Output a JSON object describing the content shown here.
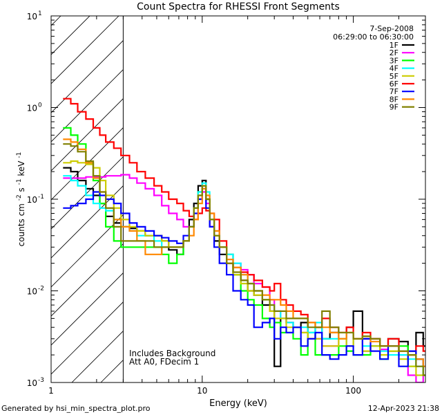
{
  "chart_data": {
    "type": "line",
    "title": "Count Spectra for RHESSI Front Segments",
    "xlabel": "Energy (keV)",
    "ylabel": "counts cm",
    "ylabel_sup1": "-2",
    "ylabel_s": " s",
    "ylabel_sup2": "-1",
    "ylabel_kev": " keV",
    "ylabel_sup3": "-1",
    "xscale": "log",
    "yscale": "log",
    "xlim": [
      1,
      300
    ],
    "ylim": [
      0.001,
      10
    ],
    "x_ticks": [
      {
        "value": 1,
        "label": "1"
      },
      {
        "value": 10,
        "label": "10"
      },
      {
        "value": 100,
        "label": "100"
      }
    ],
    "y_ticks": [
      {
        "value": 10,
        "base": "10",
        "exp": "1"
      },
      {
        "value": 1,
        "base": "10",
        "exp": "0"
      },
      {
        "value": 0.1,
        "base": "10",
        "exp": "-1"
      },
      {
        "value": 0.01,
        "base": "10",
        "exp": "-2"
      },
      {
        "value": 0.001,
        "base": "10",
        "exp": "-3"
      }
    ],
    "date": "7-Sep-2008",
    "time_range": "06:29:00 to 06:30:00",
    "attenuator_cutoff_kev": 3,
    "annotations": [
      "Includes Background",
      "Att A0, FDecim 1"
    ],
    "series": [
      {
        "name": "1F",
        "color": "#000000",
        "x": [
          1.2,
          1.35,
          1.5,
          1.7,
          1.9,
          2.1,
          2.3,
          2.6,
          2.9,
          3.3,
          3.7,
          4.2,
          4.8,
          5.4,
          6.0,
          6.8,
          7.5,
          8.2,
          8.8,
          9.4,
          10.0,
          10.6,
          11.2,
          12.0,
          13.0,
          14.5,
          16.0,
          18.0,
          20.0,
          22.0,
          25.0,
          28.0,
          30.0,
          33.0,
          36.0,
          40.0,
          45.0,
          50.0,
          56.0,
          62.0,
          70.0,
          80.0,
          90.0,
          100.0,
          115.0,
          130.0,
          150.0,
          170.0,
          200.0,
          230.0,
          260.0,
          290.0
        ],
        "values": [
          0.22,
          0.2,
          0.16,
          0.13,
          0.11,
          0.09,
          0.065,
          0.055,
          0.05,
          0.048,
          0.045,
          0.04,
          0.04,
          0.035,
          0.028,
          0.025,
          0.035,
          0.06,
          0.09,
          0.14,
          0.16,
          0.1,
          0.05,
          0.035,
          0.025,
          0.02,
          0.015,
          0.013,
          0.01,
          0.009,
          0.007,
          0.006,
          0.0015,
          0.005,
          0.0045,
          0.004,
          0.0045,
          0.003,
          0.004,
          0.003,
          0.0035,
          0.003,
          0.004,
          0.006,
          0.003,
          0.003,
          0.0025,
          0.003,
          0.0028,
          0.0022,
          0.0035,
          0.0025
        ]
      },
      {
        "name": "2F",
        "color": "#ff00ff",
        "x": [
          1.2,
          1.35,
          1.5,
          1.7,
          1.9,
          2.1,
          2.3,
          2.6,
          2.9,
          3.3,
          3.7,
          4.2,
          4.8,
          5.4,
          6.0,
          6.8,
          7.5,
          8.2,
          8.8,
          9.4,
          10.0,
          10.6,
          11.2,
          12.0,
          13.0,
          14.5,
          16.0,
          18.0,
          20.0,
          22.0,
          25.0,
          28.0,
          30.0,
          33.0,
          36.0,
          40.0,
          45.0,
          50.0,
          56.0,
          62.0,
          70.0,
          80.0,
          90.0,
          100.0,
          115.0,
          130.0,
          150.0,
          170.0,
          200.0,
          230.0,
          260.0,
          290.0
        ],
        "values": [
          0.17,
          0.17,
          0.17,
          0.175,
          0.175,
          0.175,
          0.18,
          0.18,
          0.185,
          0.17,
          0.15,
          0.13,
          0.11,
          0.085,
          0.07,
          0.06,
          0.05,
          0.05,
          0.06,
          0.1,
          0.12,
          0.09,
          0.05,
          0.04,
          0.03,
          0.025,
          0.02,
          0.017,
          0.015,
          0.012,
          0.011,
          0.008,
          0.006,
          0.005,
          0.0045,
          0.004,
          0.0035,
          0.003,
          0.003,
          0.0025,
          0.0025,
          0.003,
          0.0025,
          0.003,
          0.0022,
          0.0025,
          0.0023,
          0.0022,
          0.002,
          0.0012,
          0.001,
          0.0012
        ]
      },
      {
        "name": "3F",
        "color": "#00ff00",
        "x": [
          1.2,
          1.35,
          1.5,
          1.7,
          1.9,
          2.1,
          2.3,
          2.6,
          2.9,
          3.3,
          3.7,
          4.2,
          4.8,
          5.4,
          6.0,
          6.8,
          7.5,
          8.2,
          8.8,
          9.4,
          10.0,
          10.6,
          11.2,
          12.0,
          13.0,
          14.5,
          16.0,
          18.0,
          20.0,
          22.0,
          25.0,
          28.0,
          30.0,
          33.0,
          36.0,
          40.0,
          45.0,
          50.0,
          56.0,
          62.0,
          70.0,
          80.0,
          90.0,
          100.0,
          115.0,
          130.0,
          150.0,
          170.0,
          200.0,
          230.0,
          260.0,
          290.0
        ],
        "values": [
          0.6,
          0.5,
          0.4,
          0.25,
          0.16,
          0.09,
          0.05,
          0.035,
          0.03,
          0.03,
          0.03,
          0.03,
          0.03,
          0.025,
          0.02,
          0.025,
          0.035,
          0.05,
          0.08,
          0.12,
          0.14,
          0.1,
          0.06,
          0.04,
          0.03,
          0.025,
          0.015,
          0.01,
          0.008,
          0.007,
          0.005,
          0.004,
          0.0045,
          0.0035,
          0.0035,
          0.003,
          0.002,
          0.0035,
          0.002,
          0.002,
          0.002,
          0.0025,
          0.0022,
          0.002,
          0.002,
          0.0025,
          0.0018,
          0.0022,
          0.0025,
          0.0015,
          0.0018,
          0.0012
        ]
      },
      {
        "name": "4F",
        "color": "#00ffff",
        "x": [
          1.2,
          1.35,
          1.5,
          1.7,
          1.9,
          2.1,
          2.3,
          2.6,
          2.9,
          3.3,
          3.7,
          4.2,
          4.8,
          5.4,
          6.0,
          6.8,
          7.5,
          8.2,
          8.8,
          9.4,
          10.0,
          10.6,
          11.2,
          12.0,
          13.0,
          14.5,
          16.0,
          18.0,
          20.0,
          22.0,
          25.0,
          28.0,
          30.0,
          33.0,
          36.0,
          40.0,
          45.0,
          50.0,
          56.0,
          62.0,
          70.0,
          80.0,
          90.0,
          100.0,
          115.0,
          130.0,
          150.0,
          170.0,
          200.0,
          230.0,
          260.0,
          290.0
        ],
        "values": [
          0.18,
          0.16,
          0.14,
          0.11,
          0.09,
          0.08,
          0.075,
          0.06,
          0.05,
          0.045,
          0.04,
          0.04,
          0.035,
          0.03,
          0.03,
          0.03,
          0.035,
          0.05,
          0.08,
          0.12,
          0.15,
          0.12,
          0.06,
          0.045,
          0.03,
          0.025,
          0.02,
          0.015,
          0.012,
          0.01,
          0.008,
          0.007,
          0.006,
          0.005,
          0.0045,
          0.004,
          0.004,
          0.0035,
          0.0045,
          0.003,
          0.003,
          0.003,
          0.0025,
          0.003,
          0.0025,
          0.0025,
          0.0022,
          0.002,
          0.002,
          0.0018,
          0.0015,
          0.0012
        ]
      },
      {
        "name": "5F",
        "color": "#cccc00",
        "x": [
          1.2,
          1.35,
          1.5,
          1.7,
          1.9,
          2.1,
          2.3,
          2.6,
          2.9,
          3.3,
          3.7,
          4.2,
          4.8,
          5.4,
          6.0,
          6.8,
          7.5,
          8.2,
          8.8,
          9.4,
          10.0,
          10.6,
          11.2,
          12.0,
          13.0,
          14.5,
          16.0,
          18.0,
          20.0,
          22.0,
          25.0,
          28.0,
          30.0,
          33.0,
          36.0,
          40.0,
          45.0,
          50.0,
          56.0,
          62.0,
          70.0,
          80.0,
          90.0,
          100.0,
          115.0,
          130.0,
          150.0,
          170.0,
          200.0,
          230.0,
          260.0,
          290.0
        ],
        "values": [
          0.25,
          0.26,
          0.25,
          0.24,
          0.22,
          0.16,
          0.11,
          0.08,
          0.06,
          0.05,
          0.045,
          0.04,
          0.04,
          0.035,
          0.03,
          0.03,
          0.035,
          0.05,
          0.08,
          0.11,
          0.14,
          0.1,
          0.06,
          0.04,
          0.03,
          0.02,
          0.015,
          0.012,
          0.01,
          0.009,
          0.008,
          0.006,
          0.005,
          0.005,
          0.004,
          0.004,
          0.0035,
          0.003,
          0.003,
          0.0025,
          0.0025,
          0.003,
          0.0025,
          0.003,
          0.0022,
          0.0025,
          0.002,
          0.0022,
          0.0018,
          0.0015,
          0.0012,
          0.0012
        ]
      },
      {
        "name": "6F",
        "color": "#ff0000",
        "x": [
          1.2,
          1.35,
          1.5,
          1.7,
          1.9,
          2.1,
          2.3,
          2.6,
          2.9,
          3.3,
          3.7,
          4.2,
          4.8,
          5.4,
          6.0,
          6.8,
          7.5,
          8.2,
          8.8,
          9.4,
          10.0,
          10.6,
          11.2,
          12.0,
          13.0,
          14.5,
          16.0,
          18.0,
          20.0,
          22.0,
          25.0,
          28.0,
          30.0,
          33.0,
          36.0,
          40.0,
          45.0,
          50.0,
          56.0,
          62.0,
          70.0,
          80.0,
          90.0,
          100.0,
          115.0,
          130.0,
          150.0,
          170.0,
          200.0,
          230.0,
          260.0,
          290.0
        ],
        "values": [
          1.25,
          1.1,
          0.9,
          0.75,
          0.6,
          0.5,
          0.42,
          0.36,
          0.3,
          0.25,
          0.2,
          0.17,
          0.14,
          0.12,
          0.1,
          0.09,
          0.075,
          0.065,
          0.06,
          0.07,
          0.08,
          0.075,
          0.07,
          0.06,
          0.035,
          0.02,
          0.018,
          0.016,
          0.015,
          0.013,
          0.011,
          0.01,
          0.012,
          0.008,
          0.007,
          0.006,
          0.0055,
          0.0045,
          0.004,
          0.005,
          0.004,
          0.0035,
          0.004,
          0.003,
          0.0035,
          0.003,
          0.0025,
          0.003,
          0.0022,
          0.002,
          0.0025,
          0.0022
        ]
      },
      {
        "name": "7F",
        "color": "#0000ff",
        "x": [
          1.2,
          1.35,
          1.5,
          1.7,
          1.9,
          2.1,
          2.3,
          2.6,
          2.9,
          3.3,
          3.7,
          4.2,
          4.8,
          5.4,
          6.0,
          6.8,
          7.5,
          8.2,
          8.8,
          9.4,
          10.0,
          10.6,
          11.2,
          12.0,
          13.0,
          14.5,
          16.0,
          18.0,
          20.0,
          22.0,
          25.0,
          28.0,
          30.0,
          33.0,
          36.0,
          40.0,
          45.0,
          50.0,
          56.0,
          62.0,
          70.0,
          80.0,
          90.0,
          100.0,
          115.0,
          130.0,
          150.0,
          170.0,
          200.0,
          230.0,
          260.0,
          290.0
        ],
        "values": [
          0.08,
          0.085,
          0.09,
          0.1,
          0.12,
          0.11,
          0.1,
          0.09,
          0.07,
          0.055,
          0.05,
          0.045,
          0.04,
          0.038,
          0.035,
          0.033,
          0.04,
          0.05,
          0.07,
          0.1,
          0.13,
          0.08,
          0.05,
          0.03,
          0.02,
          0.015,
          0.01,
          0.008,
          0.007,
          0.004,
          0.0045,
          0.005,
          0.003,
          0.004,
          0.0035,
          0.004,
          0.0025,
          0.003,
          0.0035,
          0.002,
          0.0018,
          0.002,
          0.0025,
          0.002,
          0.003,
          0.0022,
          0.0018,
          0.0025,
          0.0015,
          0.0022,
          0.0018,
          0.0015
        ]
      },
      {
        "name": "8F",
        "color": "#ff8800",
        "x": [
          1.2,
          1.35,
          1.5,
          1.7,
          1.9,
          2.1,
          2.3,
          2.6,
          2.9,
          3.3,
          3.7,
          4.2,
          4.8,
          5.4,
          6.0,
          6.8,
          7.5,
          8.2,
          8.8,
          9.4,
          10.0,
          10.6,
          11.2,
          12.0,
          13.0,
          14.5,
          16.0,
          18.0,
          20.0,
          22.0,
          25.0,
          28.0,
          30.0,
          33.0,
          36.0,
          40.0,
          45.0,
          50.0,
          56.0,
          62.0,
          70.0,
          80.0,
          90.0,
          100.0,
          115.0,
          130.0,
          150.0,
          170.0,
          200.0,
          230.0,
          260.0,
          290.0
        ],
        "values": [
          0.45,
          0.42,
          0.35,
          0.25,
          0.17,
          0.12,
          0.08,
          0.06,
          0.05,
          0.045,
          0.035,
          0.025,
          0.025,
          0.03,
          0.03,
          0.03,
          0.035,
          0.04,
          0.06,
          0.09,
          0.13,
          0.11,
          0.07,
          0.045,
          0.03,
          0.022,
          0.018,
          0.015,
          0.012,
          0.01,
          0.009,
          0.008,
          0.008,
          0.007,
          0.006,
          0.005,
          0.005,
          0.0045,
          0.004,
          0.004,
          0.0035,
          0.003,
          0.0035,
          0.003,
          0.0032,
          0.0028,
          0.0025,
          0.0025,
          0.0022,
          0.002,
          0.0018,
          0.0015
        ]
      },
      {
        "name": "9F",
        "color": "#808000",
        "x": [
          1.2,
          1.35,
          1.5,
          1.7,
          1.9,
          2.1,
          2.3,
          2.6,
          2.9,
          3.3,
          3.7,
          4.2,
          4.8,
          5.4,
          6.0,
          6.8,
          7.5,
          8.2,
          8.8,
          9.4,
          10.0,
          10.6,
          11.2,
          12.0,
          13.0,
          14.5,
          16.0,
          18.0,
          20.0,
          22.0,
          25.0,
          28.0,
          30.0,
          33.0,
          36.0,
          40.0,
          45.0,
          50.0,
          56.0,
          62.0,
          70.0,
          80.0,
          90.0,
          100.0,
          115.0,
          130.0,
          150.0,
          170.0,
          200.0,
          230.0,
          260.0,
          290.0
        ],
        "values": [
          0.4,
          0.38,
          0.33,
          0.26,
          0.18,
          0.12,
          0.08,
          0.05,
          0.035,
          0.035,
          0.035,
          0.035,
          0.03,
          0.03,
          0.03,
          0.03,
          0.035,
          0.05,
          0.08,
          0.11,
          0.14,
          0.1,
          0.06,
          0.04,
          0.03,
          0.02,
          0.016,
          0.013,
          0.012,
          0.01,
          0.008,
          0.007,
          0.006,
          0.006,
          0.005,
          0.005,
          0.005,
          0.004,
          0.004,
          0.006,
          0.004,
          0.0035,
          0.0035,
          0.003,
          0.0032,
          0.003,
          0.0025,
          0.0025,
          0.0022,
          0.002,
          0.0015,
          0.0012
        ]
      }
    ]
  },
  "footer": {
    "generated_by": "Generated by hsi_min_spectra_plot.pro",
    "timestamp": "12-Apr-2023 21:38"
  }
}
